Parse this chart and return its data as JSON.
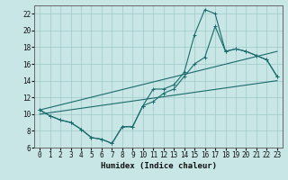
{
  "xlabel": "Humidex (Indice chaleur)",
  "xlim": [
    -0.5,
    23.5
  ],
  "ylim": [
    6,
    23
  ],
  "yticks": [
    6,
    8,
    10,
    12,
    14,
    16,
    18,
    20,
    22
  ],
  "xticks": [
    0,
    1,
    2,
    3,
    4,
    5,
    6,
    7,
    8,
    9,
    10,
    11,
    12,
    13,
    14,
    15,
    16,
    17,
    18,
    19,
    20,
    21,
    22,
    23
  ],
  "bg_color": "#c8e6e6",
  "grid_color": "#a0c8c8",
  "line_color": "#1a6b6b",
  "curve_main": {
    "x": [
      0,
      1,
      2,
      3,
      4,
      5,
      6,
      7,
      8,
      9,
      10,
      11,
      12,
      13,
      14,
      15,
      16,
      17,
      18,
      19,
      20,
      21,
      22,
      23
    ],
    "y": [
      10.5,
      9.8,
      9.3,
      9.0,
      8.2,
      7.2,
      7.0,
      6.5,
      8.5,
      8.5,
      11.0,
      13.0,
      13.0,
      13.5,
      15.0,
      19.5,
      22.5,
      22.0,
      17.5,
      17.8,
      17.5,
      17.0,
      16.5,
      14.5
    ]
  },
  "curve_low": {
    "x": [
      0,
      1,
      2,
      3,
      4,
      5,
      6,
      7,
      8,
      9,
      10,
      11,
      12,
      13,
      14,
      15,
      16,
      17,
      18,
      19,
      20,
      21,
      22,
      23
    ],
    "y": [
      10.5,
      9.8,
      9.3,
      9.0,
      8.2,
      7.2,
      7.0,
      6.5,
      8.5,
      8.5,
      11.0,
      11.5,
      12.5,
      13.0,
      14.5,
      16.0,
      16.8,
      20.5,
      17.5,
      17.8,
      17.5,
      17.0,
      16.5,
      14.5
    ]
  },
  "line_low": {
    "x": [
      0,
      23
    ],
    "y": [
      10.0,
      14.0
    ]
  },
  "line_high": {
    "x": [
      0,
      23
    ],
    "y": [
      10.5,
      17.5
    ]
  }
}
